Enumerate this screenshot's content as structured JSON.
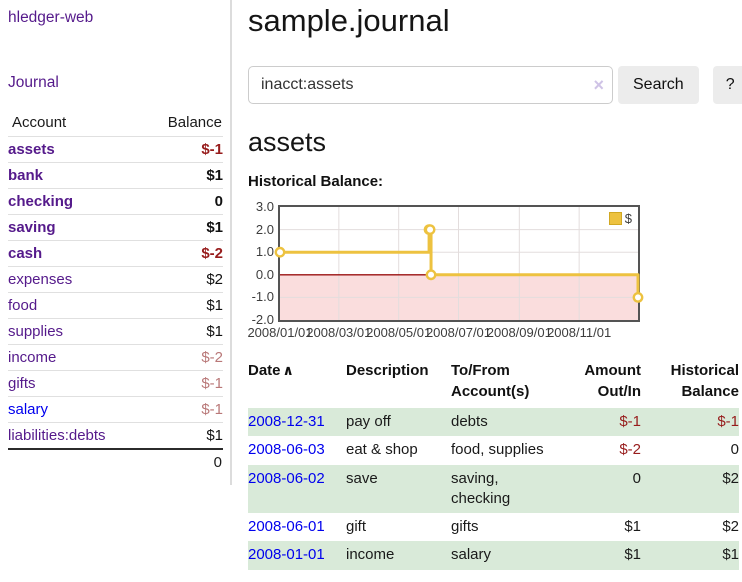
{
  "app": {
    "brand": "hledger-web",
    "nav_journal": "Journal"
  },
  "colors": {
    "link_purple": "#551a8b",
    "link_blue": "#0000ee",
    "negative_strong": "#971c1c",
    "negative_soft": "#b97878",
    "row_shade_green": "#d9ead9",
    "button_bg": "#ececec",
    "series_gold": "#edc240",
    "chart_negative_fill": "#fadddd",
    "chart_zero_line": "#991111"
  },
  "sidebar": {
    "headers": {
      "account": "Account",
      "balance": "Balance"
    },
    "accounts": [
      {
        "name": "assets",
        "level": 1,
        "bold": true,
        "negative": true,
        "balance": "$-1"
      },
      {
        "name": "bank",
        "level": 2,
        "bold": true,
        "negative": false,
        "balance": "$1"
      },
      {
        "name": "checking",
        "level": 3,
        "bold": true,
        "negative": false,
        "balance": "0"
      },
      {
        "name": "saving",
        "level": 3,
        "bold": true,
        "negative": false,
        "balance": "$1"
      },
      {
        "name": "cash",
        "level": 2,
        "bold": true,
        "negative": true,
        "balance": "$-2"
      },
      {
        "name": "expenses",
        "level": 1,
        "bold": false,
        "negative": false,
        "balance": "$2"
      },
      {
        "name": "food",
        "level": 2,
        "bold": false,
        "negative": false,
        "balance": "$1"
      },
      {
        "name": "supplies",
        "level": 2,
        "bold": false,
        "negative": false,
        "balance": "$1"
      },
      {
        "name": "income",
        "level": 1,
        "bold": false,
        "negative": true,
        "balance": "$-2"
      },
      {
        "name": "gifts",
        "level": 2,
        "bold": false,
        "negative": true,
        "balance": "$-1"
      },
      {
        "name": "salary",
        "level": 2,
        "bold": false,
        "negative": true,
        "balance": "$-1",
        "link_state": "unvisited"
      },
      {
        "name": "liabilities:debts",
        "level": 1,
        "bold": false,
        "negative": false,
        "balance": "$1"
      }
    ],
    "total": "0"
  },
  "header": {
    "title": "sample.journal"
  },
  "search": {
    "value": "inacct:assets",
    "clear_icon": "×",
    "button": "Search",
    "help_button": "?"
  },
  "account_page": {
    "heading": "assets"
  },
  "chart_data": {
    "type": "line",
    "title": "Historical Balance:",
    "step": true,
    "series": [
      {
        "name": "$",
        "color": "#edc240",
        "points": [
          {
            "x": "2008-01-01",
            "y": 1
          },
          {
            "x": "2008-06-01",
            "y": 2
          },
          {
            "x": "2008-06-02",
            "y": 2
          },
          {
            "x": "2008-06-03",
            "y": 0
          },
          {
            "x": "2008-12-31",
            "y": -1
          }
        ]
      }
    ],
    "x_range": [
      "2008-01-01",
      "2008-12-31"
    ],
    "ylim": [
      -2,
      3
    ],
    "x_ticks": [
      {
        "date": "2008-01-01",
        "label": "2008/01/01"
      },
      {
        "date": "2008-03-01",
        "label": "2008/03/01"
      },
      {
        "date": "2008-05-01",
        "label": "2008/05/01"
      },
      {
        "date": "2008-07-01",
        "label": "2008/07/01"
      },
      {
        "date": "2008-09-01",
        "label": "2008/09/01"
      },
      {
        "date": "2008-11-01",
        "label": "2008/11/01"
      }
    ],
    "y_ticks": [
      {
        "v": 3,
        "label": "3.0"
      },
      {
        "v": 2,
        "label": "2.0"
      },
      {
        "v": 1,
        "label": "1.0"
      },
      {
        "v": 0,
        "label": "0.0"
      },
      {
        "v": -1,
        "label": "-1.0"
      },
      {
        "v": -2,
        "label": "-2.0"
      }
    ],
    "legend": {
      "label": "$",
      "position": "top-right"
    },
    "grid": true,
    "negative_region_fill": "#fadddd",
    "zero_line_color": "#991111"
  },
  "register": {
    "headers": {
      "date": "Date",
      "sort_icon": "∧",
      "description": "Description",
      "account": "To/From Account(s)",
      "amount": "Amount Out/In",
      "balance": "Historical Balance"
    },
    "rows": [
      {
        "date": "2008-12-31",
        "description": "pay off",
        "account": "debts",
        "amount": "$-1",
        "amount_negative": true,
        "balance": "$-1",
        "balance_negative": true,
        "shaded": true
      },
      {
        "date": "2008-06-03",
        "description": "eat & shop",
        "account": "food, supplies",
        "amount": "$-2",
        "amount_negative": true,
        "balance": "0",
        "balance_negative": false,
        "shaded": false
      },
      {
        "date": "2008-06-02",
        "description": "save",
        "account": "saving, checking",
        "amount": "0",
        "amount_negative": false,
        "balance": "$2",
        "balance_negative": false,
        "shaded": true
      },
      {
        "date": "2008-06-01",
        "description": "gift",
        "account": "gifts",
        "amount": "$1",
        "amount_negative": false,
        "balance": "$2",
        "balance_negative": false,
        "shaded": false
      },
      {
        "date": "2008-01-01",
        "description": "income",
        "account": "salary",
        "amount": "$1",
        "amount_negative": false,
        "balance": "$1",
        "balance_negative": false,
        "shaded": true
      }
    ]
  }
}
